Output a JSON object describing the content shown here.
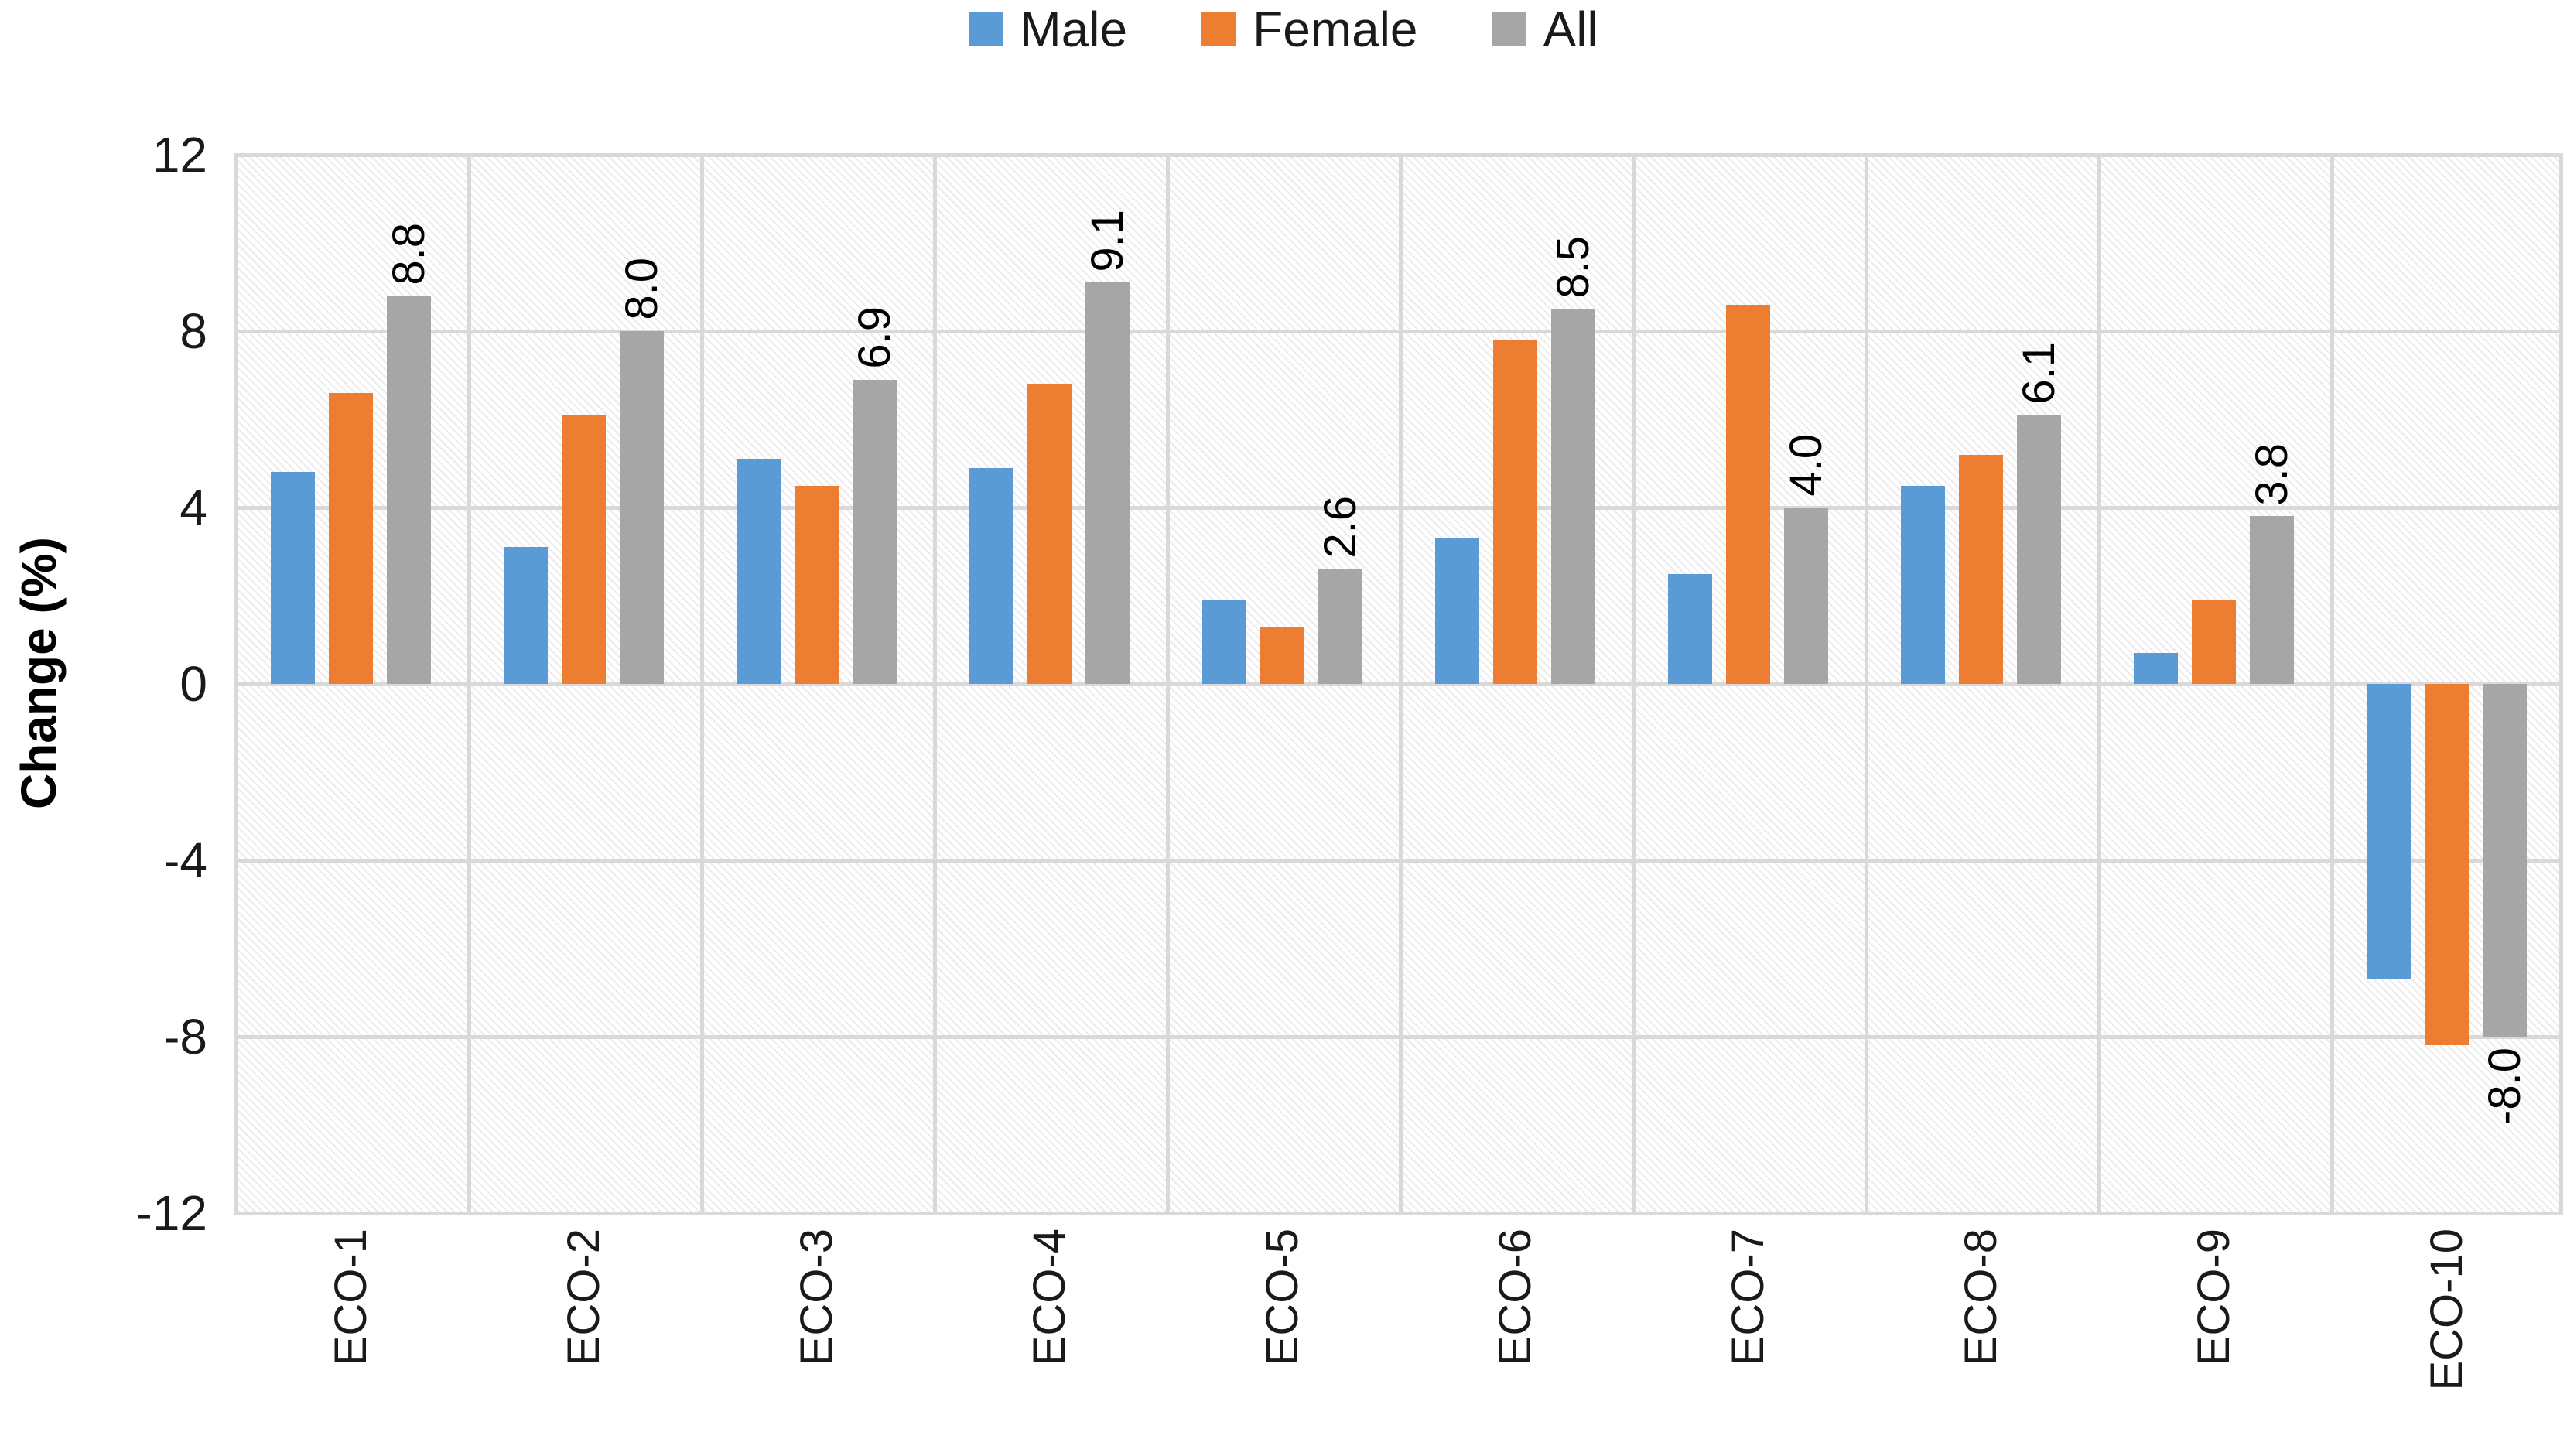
{
  "legend": {
    "items": [
      {
        "label": "Male",
        "color": "#5B9BD5"
      },
      {
        "label": "Female",
        "color": "#ED7D31"
      },
      {
        "label": "All",
        "color": "#A6A6A6"
      }
    ]
  },
  "y_axis": {
    "title": "Change (%)",
    "ticks": [
      12,
      8,
      4,
      0,
      -4,
      -8,
      -12
    ],
    "min": -12,
    "max": 12
  },
  "colors": {
    "gridline": "#d9d9d9",
    "text": "#1a1a1a"
  },
  "chart_data": {
    "type": "bar",
    "title": "",
    "xlabel": "",
    "ylabel": "Change (%)",
    "ylim": [
      -12,
      12
    ],
    "grid": true,
    "legend_position": "top",
    "plot_background": "diagonal-hatch",
    "categories": [
      "ECO-1",
      "ECO-2",
      "ECO-3",
      "ECO-4",
      "ECO-5",
      "ECO-6",
      "ECO-7",
      "ECO-8",
      "ECO-9",
      "ECO-10"
    ],
    "series": [
      {
        "name": "Male",
        "color": "#5B9BD5",
        "values": [
          4.8,
          3.1,
          5.1,
          4.9,
          1.9,
          3.3,
          2.5,
          4.5,
          0.7,
          -6.7
        ]
      },
      {
        "name": "Female",
        "color": "#ED7D31",
        "values": [
          6.6,
          6.1,
          4.5,
          6.8,
          1.3,
          7.8,
          8.6,
          5.2,
          1.9,
          -8.2
        ]
      },
      {
        "name": "All",
        "color": "#A6A6A6",
        "values": [
          8.8,
          8.0,
          6.9,
          9.1,
          2.6,
          8.5,
          4.0,
          6.1,
          3.8,
          -8.0
        ],
        "data_labels": [
          "8.8",
          "8.0",
          "6.9",
          "9.1",
          "2.6",
          "8.5",
          "4.0",
          "6.1",
          "3.8",
          "-8.0"
        ]
      }
    ],
    "data_labels_on_series": "All",
    "data_label_rotation": "vertical-bottom-to-top"
  }
}
